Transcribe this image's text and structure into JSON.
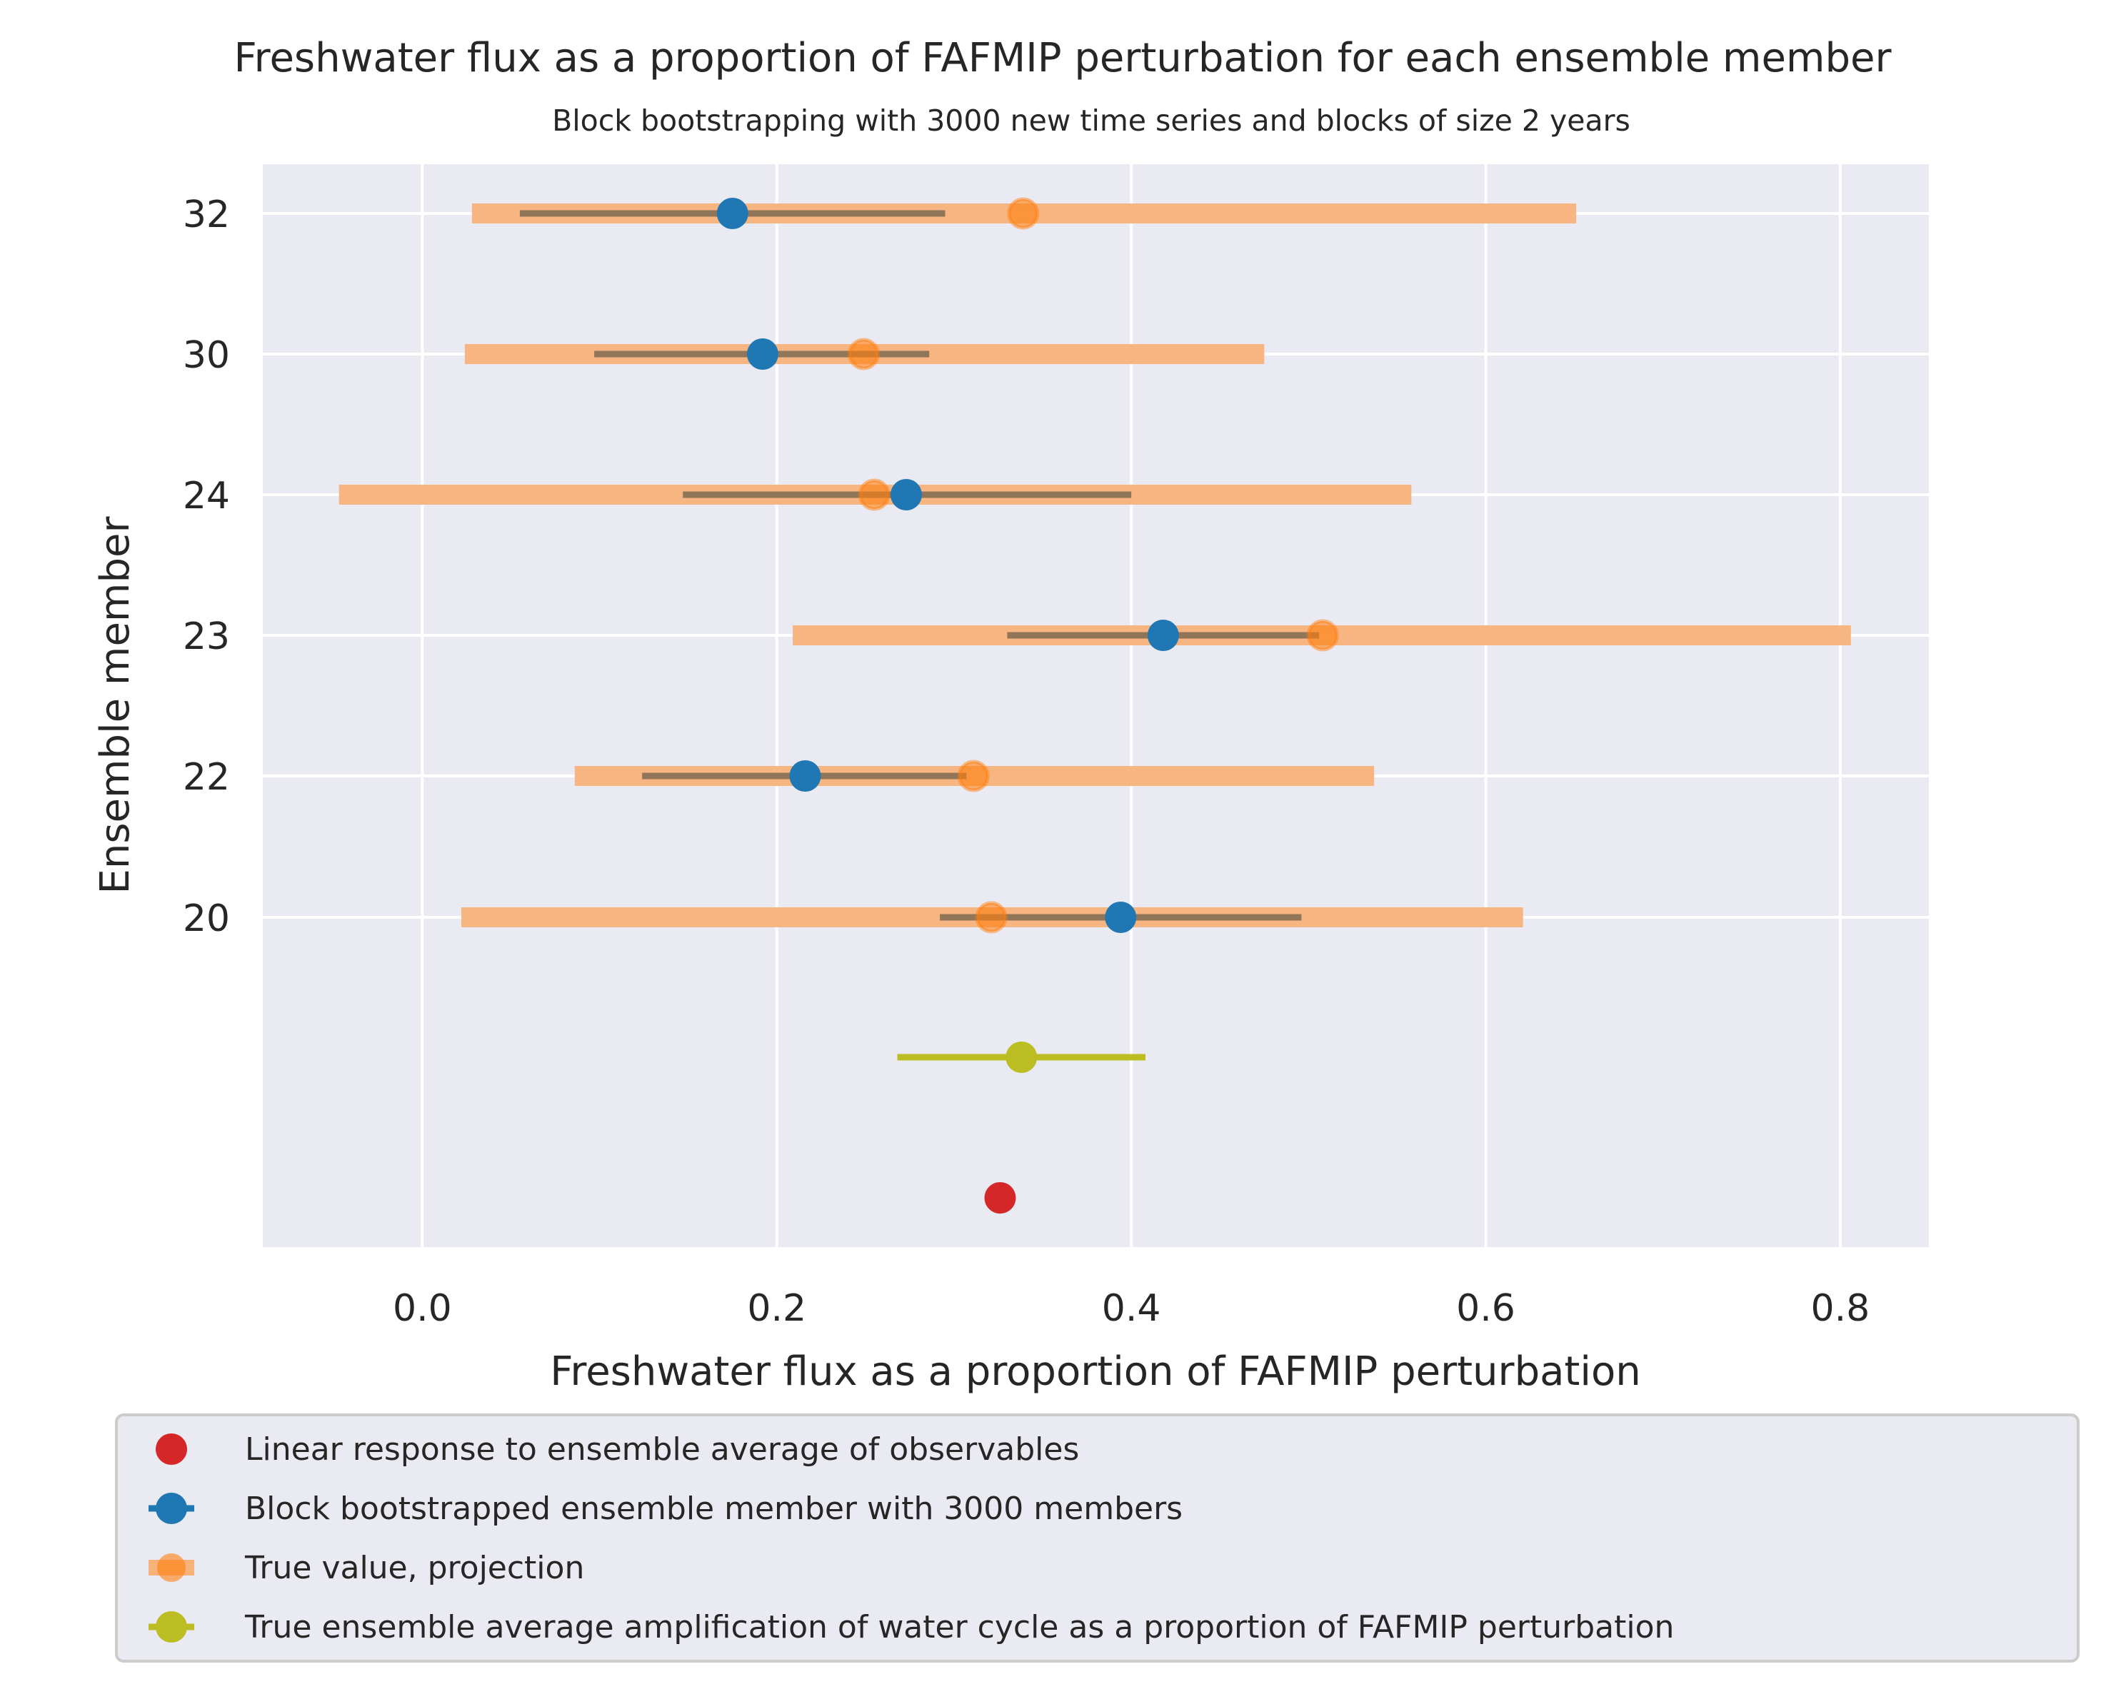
{
  "chart_data": {
    "type": "errorbar",
    "title": "Freshwater flux as a proportion of FAFMIP perturbation for each ensemble member",
    "subtitle": "Block bootstrapping with 3000 new time series and blocks of size 2 years",
    "xlabel": "Freshwater flux as a proportion of FAFMIP perturbation",
    "ylabel": "Ensemble member",
    "xlim": [
      -0.09,
      0.85
    ],
    "x_ticks": [
      "0.0",
      "0.2",
      "0.4",
      "0.6",
      "0.8"
    ],
    "x_tick_values": [
      0.0,
      0.2,
      0.4,
      0.6,
      0.8
    ],
    "y_categories": [
      "32",
      "30",
      "24",
      "23",
      "22",
      "20"
    ],
    "grid": true,
    "legend_position": "below",
    "colors": {
      "background": "#eaeaf2",
      "grid": "#ffffff",
      "linear_response": "#d62728",
      "bootstrap": "#1f77b4",
      "bootstrap_err": "#7f6a52",
      "true_value": "#ff7f0e",
      "true_err": "#f7b27a",
      "ensemble_average": "#bcbd22"
    },
    "series": [
      {
        "name": "Linear response to ensemble average of observables",
        "kind": "point",
        "points": [
          {
            "row": "linear",
            "x": 0.326
          }
        ]
      },
      {
        "name": "Block bootstrapped ensemble member with 3000 members",
        "kind": "errorbar",
        "points": [
          {
            "member": "32",
            "x": 0.175,
            "low": 0.055,
            "high": 0.295
          },
          {
            "member": "30",
            "x": 0.192,
            "low": 0.097,
            "high": 0.286
          },
          {
            "member": "24",
            "x": 0.273,
            "low": 0.147,
            "high": 0.4
          },
          {
            "member": "23",
            "x": 0.418,
            "low": 0.33,
            "high": 0.506
          },
          {
            "member": "22",
            "x": 0.216,
            "low": 0.124,
            "high": 0.307
          },
          {
            "member": "20",
            "x": 0.394,
            "low": 0.292,
            "high": 0.496
          }
        ]
      },
      {
        "name": "True value, projection",
        "kind": "errorbar",
        "points": [
          {
            "member": "32",
            "x": 0.339,
            "low": 0.028,
            "high": 0.651
          },
          {
            "member": "30",
            "x": 0.249,
            "low": 0.024,
            "high": 0.475
          },
          {
            "member": "24",
            "x": 0.255,
            "low": -0.047,
            "high": 0.558
          },
          {
            "member": "23",
            "x": 0.508,
            "low": 0.209,
            "high": 0.806
          },
          {
            "member": "22",
            "x": 0.311,
            "low": 0.086,
            "high": 0.537
          },
          {
            "member": "20",
            "x": 0.321,
            "low": 0.022,
            "high": 0.621
          }
        ]
      },
      {
        "name": "True ensemble average amplification of water cycle as a proportion of FAFMIP perturbation",
        "kind": "errorbar",
        "points": [
          {
            "row": "average",
            "x": 0.338,
            "low": 0.268,
            "high": 0.408
          }
        ]
      }
    ]
  }
}
